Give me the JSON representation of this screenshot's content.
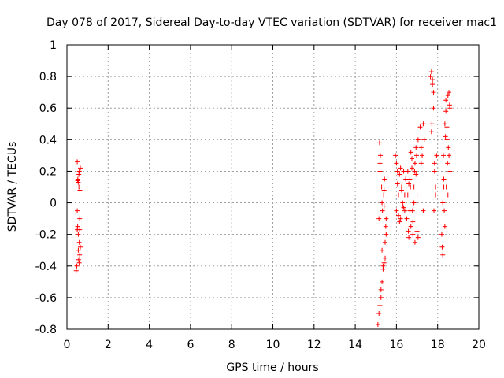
{
  "chart_data": {
    "type": "scatter",
    "title": "Day 078 of 2017, Sidereal Day-to-day VTEC variation (SDTVAR) for receiver mac1",
    "xlabel": "GPS time / hours",
    "ylabel": "SDTVAR / TECUs",
    "xlim": [
      0,
      20
    ],
    "ylim": [
      -0.8,
      1
    ],
    "xticks": [
      0,
      2,
      4,
      6,
      8,
      10,
      12,
      14,
      16,
      18,
      20
    ],
    "yticks": [
      -0.8,
      -0.6,
      -0.4,
      -0.2,
      0,
      0.2,
      0.4,
      0.6,
      0.8,
      1
    ],
    "xtick_labels": [
      "0",
      "2",
      "4",
      "6",
      "8",
      "10",
      "12",
      "14",
      "16",
      "18",
      "20"
    ],
    "ytick_labels": [
      "-0.8",
      "-0.6",
      "-0.4",
      "-0.2",
      "0",
      "0.2",
      "0.4",
      "0.6",
      "0.8",
      "1"
    ],
    "grid": true,
    "marker": "+",
    "marker_color": "#ff0000",
    "series": [
      {
        "name": "SDTVAR",
        "x": [
          0.45,
          0.48,
          0.5,
          0.5,
          0.52,
          0.53,
          0.55,
          0.55,
          0.57,
          0.58,
          0.6,
          0.6,
          0.62,
          0.62,
          0.63,
          0.65,
          0.65,
          0.5,
          0.55,
          0.6,
          0.58,
          0.52,
          0.62,
          15.1,
          15.15,
          15.18,
          15.2,
          15.22,
          15.25,
          15.28,
          15.3,
          15.32,
          15.35,
          15.38,
          15.4,
          15.42,
          15.45,
          15.48,
          15.5,
          15.15,
          15.2,
          15.25,
          15.3,
          15.35,
          15.4,
          15.45,
          15.5,
          15.2,
          15.3,
          15.4,
          15.95,
          16.0,
          16.05,
          16.1,
          16.15,
          16.2,
          16.25,
          16.3,
          16.35,
          16.4,
          16.45,
          16.0,
          16.1,
          16.2,
          16.3,
          16.4,
          16.05,
          16.15,
          16.25,
          16.35,
          16.5,
          16.55,
          16.6,
          16.65,
          16.7,
          16.75,
          16.8,
          16.85,
          16.9,
          16.95,
          17.0,
          17.05,
          16.55,
          16.65,
          16.75,
          16.85,
          16.95,
          17.05,
          16.6,
          16.7,
          16.8,
          16.9,
          17.0,
          16.58,
          16.68,
          16.78,
          16.88,
          16.98,
          17.15,
          17.2,
          17.25,
          17.3,
          17.35,
          17.2,
          17.3,
          17.65,
          17.7,
          17.75,
          17.8,
          17.85,
          17.9,
          17.95,
          17.7,
          17.8,
          17.9,
          17.75,
          17.85,
          17.72,
          17.82,
          18.2,
          18.25,
          18.3,
          18.35,
          18.4,
          18.45,
          18.5,
          18.55,
          18.6,
          18.25,
          18.35,
          18.45,
          18.55,
          18.3,
          18.4,
          18.5,
          18.6,
          18.28,
          18.38,
          18.48,
          18.58,
          18.22,
          18.32,
          18.42,
          18.52
        ],
        "y": [
          -0.43,
          -0.4,
          -0.17,
          0.26,
          -0.15,
          0.15,
          -0.3,
          0.13,
          -0.36,
          0.18,
          -0.25,
          0.2,
          -0.33,
          -0.17,
          0.08,
          -0.28,
          0.22,
          -0.05,
          -0.2,
          -0.38,
          0.1,
          0.14,
          -0.1,
          -0.77,
          -0.7,
          0.38,
          -0.65,
          0.3,
          -0.55,
          0.1,
          -0.5,
          -0.05,
          -0.42,
          0.05,
          -0.38,
          0.15,
          -0.35,
          -0.15,
          -0.2,
          -0.1,
          0.2,
          -0.6,
          0.0,
          -0.4,
          0.08,
          -0.25,
          -0.1,
          0.25,
          -0.3,
          -0.02,
          0.3,
          -0.05,
          0.2,
          0.05,
          0.18,
          -0.1,
          0.1,
          0.0,
          0.2,
          -0.05,
          0.15,
          0.25,
          -0.08,
          0.22,
          -0.02,
          0.05,
          0.12,
          -0.12,
          0.08,
          -0.03,
          -0.1,
          0.2,
          -0.22,
          0.15,
          -0.15,
          0.28,
          -0.2,
          0.1,
          -0.25,
          0.35,
          -0.18,
          0.4,
          0.05,
          -0.05,
          0.22,
          0.0,
          0.18,
          -0.22,
          0.12,
          0.32,
          -0.12,
          0.25,
          0.05,
          -0.18,
          0.1,
          -0.05,
          0.2,
          0.3,
          0.48,
          0.35,
          0.3,
          0.5,
          0.4,
          0.25,
          -0.05,
          0.8,
          0.83,
          0.75,
          0.7,
          0.2,
          0.05,
          0.3,
          0.45,
          0.6,
          0.1,
          0.78,
          0.25,
          0.5,
          -0.05,
          -0.2,
          -0.33,
          0.1,
          0.5,
          0.65,
          0.4,
          0.68,
          0.3,
          0.6,
          0.0,
          -0.15,
          0.48,
          0.7,
          0.15,
          0.58,
          0.05,
          0.2,
          0.3,
          0.42,
          0.25,
          0.62,
          -0.28,
          -0.05,
          0.1,
          0.35
        ]
      }
    ]
  }
}
